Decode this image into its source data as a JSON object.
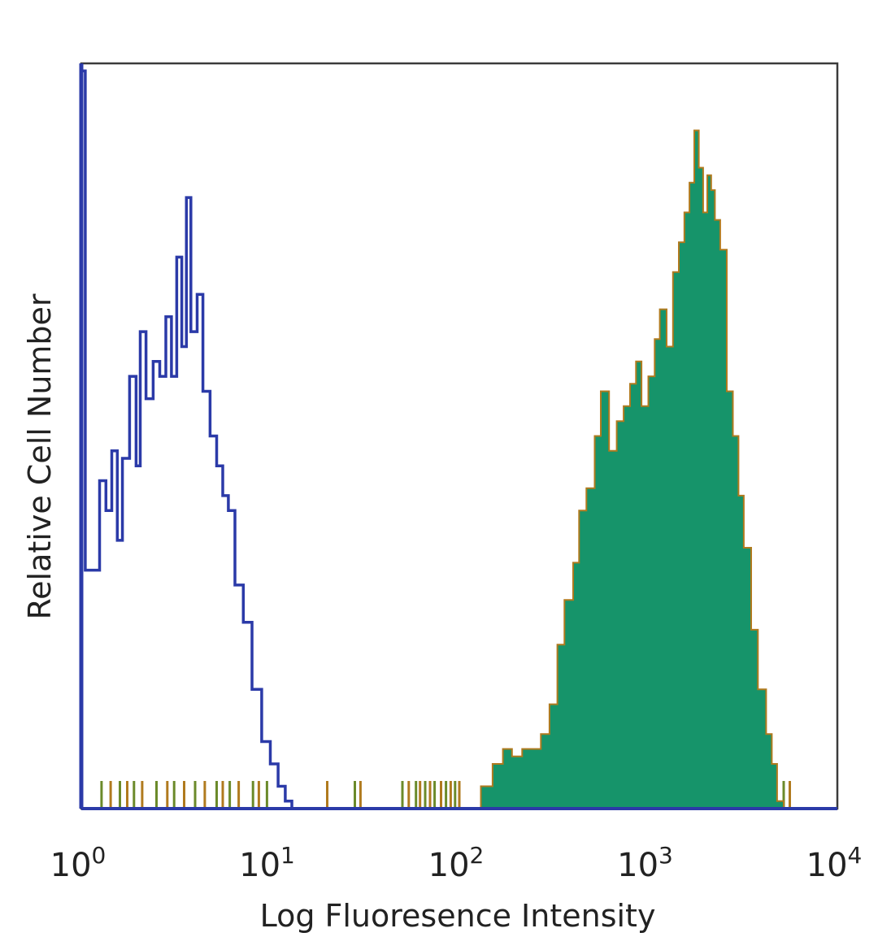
{
  "chart_data": {
    "type": "area",
    "xscale": "log",
    "xlim": [
      1,
      10000
    ],
    "ylim": [
      0,
      100
    ],
    "xlabel": "Log Fluoresence Intensity",
    "ylabel": "Relative Cell Number",
    "ytick_labels": false,
    "xticks": [
      {
        "value": 1,
        "base": "10",
        "exp": "0"
      },
      {
        "value": 10,
        "base": "10",
        "exp": "1"
      },
      {
        "value": 100,
        "base": "10",
        "exp": "2"
      },
      {
        "value": 1000,
        "base": "10",
        "exp": "3"
      },
      {
        "value": 10000,
        "base": "10",
        "exp": "4"
      }
    ],
    "series": [
      {
        "style": "outline",
        "color": "#2b3aa8",
        "points": [
          [
            1.0,
            99
          ],
          [
            1.05,
            32
          ],
          [
            1.15,
            32
          ],
          [
            1.25,
            44
          ],
          [
            1.35,
            40
          ],
          [
            1.45,
            48
          ],
          [
            1.55,
            36
          ],
          [
            1.65,
            47
          ],
          [
            1.8,
            58
          ],
          [
            1.95,
            46
          ],
          [
            2.05,
            64
          ],
          [
            2.2,
            55
          ],
          [
            2.4,
            60
          ],
          [
            2.6,
            58
          ],
          [
            2.8,
            66
          ],
          [
            3.0,
            58
          ],
          [
            3.2,
            74
          ],
          [
            3.4,
            62
          ],
          [
            3.6,
            82
          ],
          [
            3.8,
            64
          ],
          [
            4.1,
            69
          ],
          [
            4.4,
            56
          ],
          [
            4.8,
            50
          ],
          [
            5.2,
            46
          ],
          [
            5.6,
            42
          ],
          [
            6.0,
            40
          ],
          [
            6.5,
            30
          ],
          [
            7.2,
            25
          ],
          [
            8.0,
            16
          ],
          [
            9.0,
            9
          ],
          [
            10.0,
            6
          ],
          [
            11.0,
            3
          ],
          [
            12.0,
            1
          ],
          [
            13.0,
            0
          ]
        ]
      },
      {
        "style": "filled",
        "color": "#16946a",
        "edge_color": "#b07a1e",
        "points": [
          [
            120,
            0
          ],
          [
            130,
            3
          ],
          [
            150,
            6
          ],
          [
            170,
            8
          ],
          [
            190,
            7
          ],
          [
            215,
            8
          ],
          [
            245,
            8
          ],
          [
            270,
            10
          ],
          [
            300,
            14
          ],
          [
            330,
            22
          ],
          [
            360,
            28
          ],
          [
            400,
            33
          ],
          [
            430,
            40
          ],
          [
            470,
            43
          ],
          [
            520,
            50
          ],
          [
            560,
            56
          ],
          [
            620,
            48
          ],
          [
            680,
            52
          ],
          [
            740,
            54
          ],
          [
            800,
            57
          ],
          [
            860,
            60
          ],
          [
            920,
            54
          ],
          [
            1000,
            58
          ],
          [
            1080,
            63
          ],
          [
            1150,
            67
          ],
          [
            1250,
            62
          ],
          [
            1350,
            72
          ],
          [
            1450,
            76
          ],
          [
            1550,
            80
          ],
          [
            1650,
            84
          ],
          [
            1750,
            91
          ],
          [
            1850,
            86
          ],
          [
            1950,
            80
          ],
          [
            2050,
            85
          ],
          [
            2150,
            83
          ],
          [
            2250,
            79
          ],
          [
            2400,
            75
          ],
          [
            2600,
            56
          ],
          [
            2800,
            50
          ],
          [
            3000,
            42
          ],
          [
            3200,
            35
          ],
          [
            3500,
            24
          ],
          [
            3800,
            16
          ],
          [
            4200,
            10
          ],
          [
            4500,
            6
          ],
          [
            4800,
            1
          ],
          [
            5200,
            0
          ]
        ]
      }
    ],
    "baseline_events": [
      1.0,
      1.28,
      1.43,
      1.6,
      1.75,
      1.9,
      2.1,
      2.5,
      2.85,
      3.1,
      3.5,
      4.0,
      4.5,
      5.2,
      5.6,
      6.1,
      6.8,
      8.1,
      8.7,
      9.6,
      20,
      28,
      30,
      50,
      54,
      59,
      62,
      66,
      70,
      74,
      80,
      85,
      90,
      95,
      100,
      5200,
      5600
    ]
  }
}
